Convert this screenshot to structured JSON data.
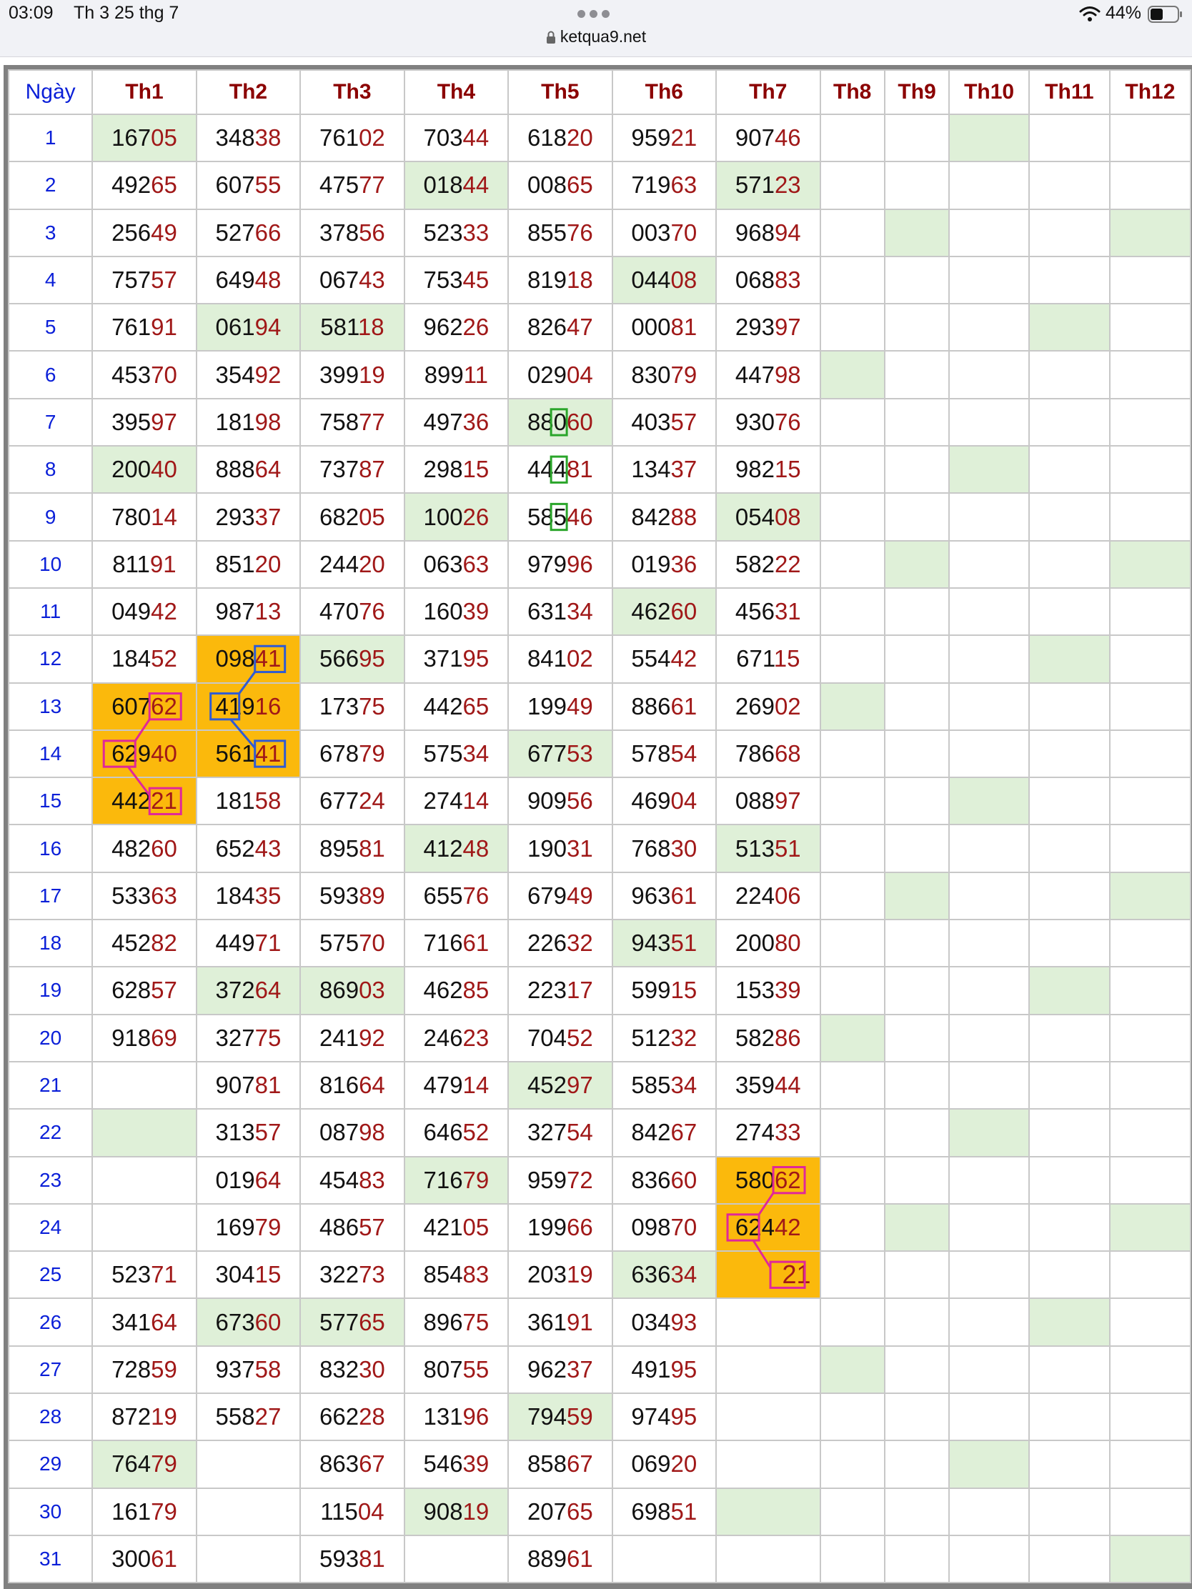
{
  "status_bar": {
    "time": "03:09",
    "date": "Th 3 25 thg 7",
    "battery": "44%",
    "url": "ketqua9.net"
  },
  "table": {
    "headers": [
      "Ngày",
      "Th1",
      "Th2",
      "Th3",
      "Th4",
      "Th5",
      "Th6",
      "Th7",
      "Th8",
      "Th9",
      "Th10",
      "Th11",
      "Th12"
    ],
    "days": [
      "1",
      "2",
      "3",
      "4",
      "5",
      "6",
      "7",
      "8",
      "9",
      "10",
      "11",
      "12",
      "13",
      "14",
      "15",
      "16",
      "17",
      "18",
      "19",
      "20",
      "21",
      "22",
      "23",
      "24",
      "25",
      "26",
      "27",
      "28",
      "29",
      "30",
      "31"
    ],
    "rows": [
      [
        "16705",
        "34838",
        "76102",
        "70344",
        "61820",
        "95921",
        "90746",
        "",
        "",
        "",
        "",
        ""
      ],
      [
        "49265",
        "60755",
        "47577",
        "01844",
        "00865",
        "71963",
        "57123",
        "",
        "",
        "",
        "",
        ""
      ],
      [
        "25649",
        "52766",
        "37856",
        "52333",
        "85576",
        "00370",
        "96894",
        "",
        "",
        "",
        "",
        ""
      ],
      [
        "75757",
        "64948",
        "06743",
        "75345",
        "81918",
        "04408",
        "06883",
        "",
        "",
        "",
        "",
        ""
      ],
      [
        "76191",
        "06194",
        "58118",
        "96226",
        "82647",
        "00081",
        "29397",
        "",
        "",
        "",
        "",
        ""
      ],
      [
        "45370",
        "35492",
        "39919",
        "89911",
        "02904",
        "83079",
        "44798",
        "",
        "",
        "",
        "",
        ""
      ],
      [
        "39597",
        "18198",
        "75877",
        "49736",
        "88060",
        "40357",
        "93076",
        "",
        "",
        "",
        "",
        ""
      ],
      [
        "20040",
        "88864",
        "73787",
        "29815",
        "44481",
        "13437",
        "98215",
        "",
        "",
        "",
        "",
        ""
      ],
      [
        "78014",
        "29337",
        "68205",
        "10026",
        "58546",
        "84288",
        "05408",
        "",
        "",
        "",
        "",
        ""
      ],
      [
        "81191",
        "85120",
        "24420",
        "06363",
        "97996",
        "01936",
        "58222",
        "",
        "",
        "",
        "",
        ""
      ],
      [
        "04942",
        "98713",
        "47076",
        "16039",
        "63134",
        "46260",
        "45631",
        "",
        "",
        "",
        "",
        ""
      ],
      [
        "18452",
        "09841",
        "56695",
        "37195",
        "84102",
        "55442",
        "67115",
        "",
        "",
        "",
        "",
        ""
      ],
      [
        "60762",
        "41916",
        "17375",
        "44265",
        "19949",
        "88661",
        "26902",
        "",
        "",
        "",
        "",
        ""
      ],
      [
        "62940",
        "56141",
        "67879",
        "57534",
        "67753",
        "57854",
        "78668",
        "",
        "",
        "",
        "",
        ""
      ],
      [
        "44221",
        "18158",
        "67724",
        "27414",
        "90956",
        "46904",
        "08897",
        "",
        "",
        "",
        "",
        ""
      ],
      [
        "48260",
        "65243",
        "89581",
        "41248",
        "19031",
        "76830",
        "51351",
        "",
        "",
        "",
        "",
        ""
      ],
      [
        "53363",
        "18435",
        "59389",
        "65576",
        "67949",
        "96361",
        "22406",
        "",
        "",
        "",
        "",
        ""
      ],
      [
        "45282",
        "44971",
        "57570",
        "71661",
        "22632",
        "94351",
        "20080",
        "",
        "",
        "",
        "",
        ""
      ],
      [
        "62857",
        "37264",
        "86903",
        "46285",
        "22317",
        "59915",
        "15339",
        "",
        "",
        "",
        "",
        ""
      ],
      [
        "91869",
        "32775",
        "24192",
        "24623",
        "70452",
        "51232",
        "58286",
        "",
        "",
        "",
        "",
        ""
      ],
      [
        "",
        "90781",
        "81664",
        "47914",
        "45297",
        "58534",
        "35944",
        "",
        "",
        "",
        "",
        ""
      ],
      [
        "",
        "31357",
        "08798",
        "64652",
        "32754",
        "84267",
        "27433",
        "",
        "",
        "",
        "",
        ""
      ],
      [
        "",
        "01964",
        "45483",
        "71679",
        "95972",
        "83660",
        "58062",
        "",
        "",
        "",
        "",
        ""
      ],
      [
        "",
        "16979",
        "48657",
        "42105",
        "19966",
        "09870",
        "62442",
        "",
        "",
        "",
        "",
        ""
      ],
      [
        "52371",
        "30415",
        "32273",
        "85483",
        "20319",
        "63634",
        "21",
        "",
        "",
        "",
        "",
        ""
      ],
      [
        "34164",
        "67360",
        "57765",
        "89675",
        "36191",
        "03493",
        "",
        "",
        "",
        "",
        "",
        ""
      ],
      [
        "72859",
        "93758",
        "83230",
        "80755",
        "96237",
        "49195",
        "",
        "",
        "",
        "",
        "",
        ""
      ],
      [
        "87219",
        "55827",
        "66228",
        "13196",
        "79459",
        "97495",
        "",
        "",
        "",
        "",
        "",
        ""
      ],
      [
        "76479",
        "",
        "86367",
        "54639",
        "85867",
        "06920",
        "",
        "",
        "",
        "",
        "",
        ""
      ],
      [
        "16179",
        "",
        "11504",
        "90819",
        "20765",
        "69851",
        "",
        "",
        "",
        "",
        "",
        ""
      ],
      [
        "30061",
        "",
        "59381",
        "",
        "88961",
        "",
        "",
        "",
        "",
        "",
        "",
        ""
      ]
    ],
    "colors": {
      "day": "#0a1fd8",
      "header": "#8b0000",
      "tail": "#a01818",
      "green": "#dff0d8",
      "orange": "#fbb90c",
      "pink": "#e0279a",
      "blue": "#2f5bd3",
      "box_green": "#2aa52a"
    }
  }
}
